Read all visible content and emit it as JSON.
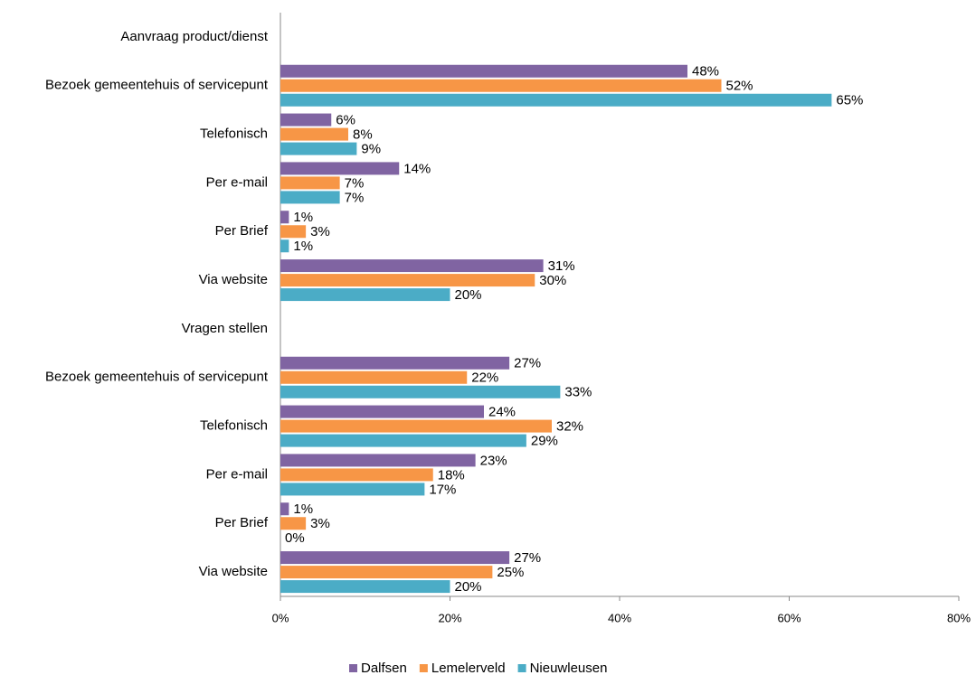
{
  "chart_data": {
    "type": "hbar",
    "categories": [
      "Aanvraag product/dienst",
      "Bezoek gemeentehuis of servicepunt",
      "Telefonisch",
      "Per e-mail",
      "Per Brief",
      "Via website",
      "Vragen stellen",
      "Bezoek gemeentehuis of servicepunt",
      "Telefonisch",
      "Per e-mail",
      "Per Brief",
      "Via website"
    ],
    "series": [
      {
        "name": "Dalfsen",
        "color": "#8064a2",
        "values": [
          null,
          48,
          6,
          14,
          1,
          31,
          null,
          27,
          24,
          23,
          1,
          27
        ],
        "value_labels": [
          null,
          "48%",
          "6%",
          "14%",
          "1%",
          "31%",
          null,
          "27%",
          "24%",
          "23%",
          "1%",
          "27%"
        ]
      },
      {
        "name": "Lemelerveld",
        "color": "#f79646",
        "values": [
          null,
          52,
          8,
          7,
          3,
          30,
          null,
          22,
          32,
          18,
          3,
          25
        ],
        "value_labels": [
          null,
          "52%",
          "8%",
          "7%",
          "3%",
          "30%",
          null,
          "22%",
          "32%",
          "18%",
          "3%",
          "25%"
        ]
      },
      {
        "name": "Nieuwleusen",
        "color": "#4bacc6",
        "values": [
          null,
          65,
          9,
          7,
          1,
          20,
          null,
          33,
          29,
          17,
          0,
          20
        ],
        "value_labels": [
          null,
          "65%",
          "9%",
          "7%",
          "1%",
          "20%",
          null,
          "33%",
          "29%",
          "17%",
          "0%",
          "20%"
        ]
      }
    ],
    "xlim": [
      0,
      80
    ],
    "xticks": [
      {
        "value": 0,
        "label": "0%"
      },
      {
        "value": 20,
        "label": "20%"
      },
      {
        "value": 40,
        "label": "40%"
      },
      {
        "value": 60,
        "label": "60%"
      },
      {
        "value": 80,
        "label": "80%"
      }
    ],
    "legend": "bottom"
  }
}
